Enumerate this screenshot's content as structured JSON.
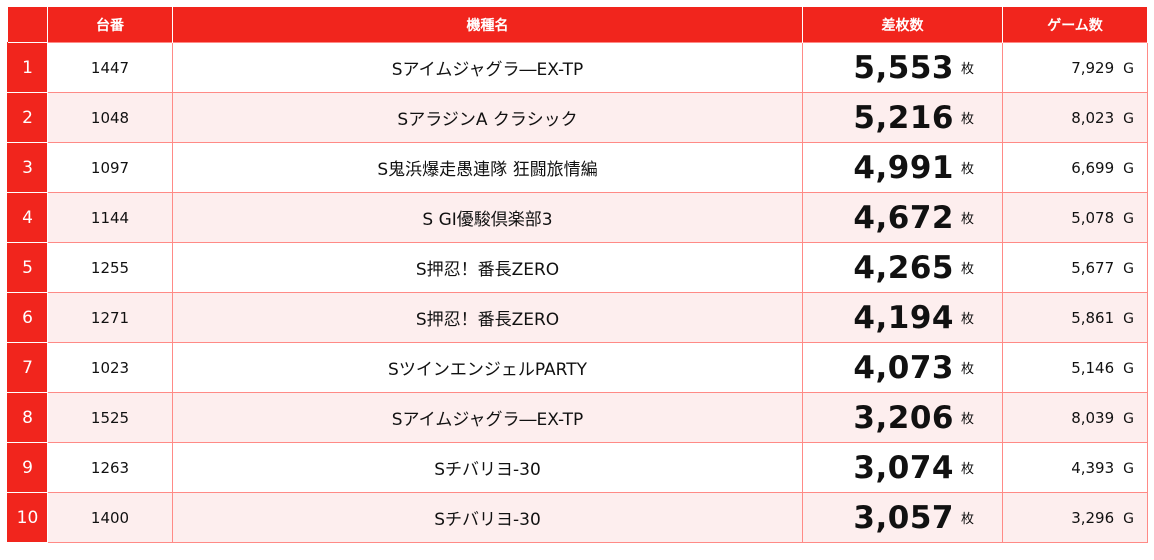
{
  "headers": {
    "rank": "",
    "unit": "台番",
    "machine": "機種名",
    "diff": "差枚数",
    "games": "ゲーム数"
  },
  "diff_unit": "枚",
  "games_unit": "G",
  "colors": {
    "header_bg": "#f1251d",
    "row_alt_bg": "#fdeeee",
    "border": "#ff8a86"
  },
  "rows": [
    {
      "rank": "1",
      "unit": "1447",
      "machine": "Sアイムジャグラ―EX-TP",
      "diff": "5,553",
      "games": "7,929"
    },
    {
      "rank": "2",
      "unit": "1048",
      "machine": "SアラジンA クラシック",
      "diff": "5,216",
      "games": "8,023"
    },
    {
      "rank": "3",
      "unit": "1097",
      "machine": "S鬼浜爆走愚連隊 狂闘旅情編",
      "diff": "4,991",
      "games": "6,699"
    },
    {
      "rank": "4",
      "unit": "1144",
      "machine": "S GI優駿倶楽部3",
      "diff": "4,672",
      "games": "5,078"
    },
    {
      "rank": "5",
      "unit": "1255",
      "machine": "S押忍！番長ZERO",
      "diff": "4,265",
      "games": "5,677"
    },
    {
      "rank": "6",
      "unit": "1271",
      "machine": "S押忍！番長ZERO",
      "diff": "4,194",
      "games": "5,861"
    },
    {
      "rank": "7",
      "unit": "1023",
      "machine": "SツインエンジェルPARTY",
      "diff": "4,073",
      "games": "5,146"
    },
    {
      "rank": "8",
      "unit": "1525",
      "machine": "Sアイムジャグラ―EX-TP",
      "diff": "3,206",
      "games": "8,039"
    },
    {
      "rank": "9",
      "unit": "1263",
      "machine": "Sチバリヨ-30",
      "diff": "3,074",
      "games": "4,393"
    },
    {
      "rank": "10",
      "unit": "1400",
      "machine": "Sチバリヨ-30",
      "diff": "3,057",
      "games": "3,296"
    }
  ]
}
